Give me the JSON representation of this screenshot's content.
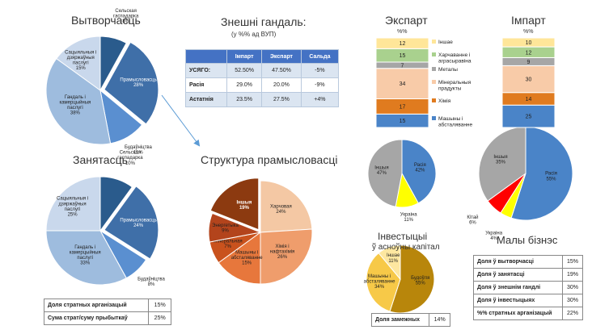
{
  "titles": {
    "production": "Вытворчасць",
    "employment": "Занятасць",
    "trade": "Знешні гандаль:",
    "trade_sub": "(у %% ад ВУП)",
    "industry": "Структура прамысловасці",
    "export": "Экспарт",
    "import": "Імпарт",
    "invest": "Інвестыцыі",
    "invest_sub": "ў асноўны капітал",
    "small": "Малы бізнэс"
  },
  "trade_table": {
    "headers": [
      "",
      "Імпарт",
      "Экспарт",
      "Сальда"
    ],
    "rows": [
      [
        "УСЯГО:",
        "52.50%",
        "47.50%",
        "-5%"
      ],
      [
        "Расія",
        "29.0%",
        "20.0%",
        "-9%"
      ],
      [
        "Астатнія",
        "23.5%",
        "27.5%",
        "+4%"
      ]
    ]
  },
  "losses_table": [
    [
      "Доля стратных арганізацый",
      "15%"
    ],
    [
      "Сума страт/суму прыбыткаў",
      "25%"
    ]
  ],
  "foreign_table": [
    [
      "Доля замежных",
      "14%"
    ]
  ],
  "small_table": [
    [
      "Доля ў вытворчасці",
      "15%"
    ],
    [
      "Доля ў занятасці",
      "19%"
    ],
    [
      "Доля ў знешнім гандлі",
      "30%"
    ],
    [
      "Доля ў інвестыцыях",
      "30%"
    ],
    [
      "%% стратных арганізацый",
      "22%"
    ]
  ],
  "colors": {
    "blue_dark": "#2e5d8e",
    "blue_mid": "#4a7fc0",
    "blue_light": "#9dbce0",
    "blue_pale": "#c6d7ec",
    "table_header": "#4472c4",
    "arrow": "#5b9bd5"
  },
  "chart_data": [
    {
      "id": "production",
      "type": "pie",
      "slices": [
        {
          "label": "Сельская гаспадарка",
          "value": 8,
          "text": "8%"
        },
        {
          "label": "Прамысловасць",
          "value": 28,
          "text": "28%"
        },
        {
          "label": "Будаўніцтва",
          "value": 11,
          "text": "11%"
        },
        {
          "label": "Гандаль і камерцыйныя паслугі",
          "value": 38,
          "text": "38%"
        },
        {
          "label": "Сацыяльныя і дзяржаўныя паслугі",
          "value": 15,
          "text": "15%"
        }
      ]
    },
    {
      "id": "employment",
      "type": "pie",
      "slices": [
        {
          "label": "Сельская гаспадарка",
          "value": 10,
          "text": "10%"
        },
        {
          "label": "Прамысловасць",
          "value": 24,
          "text": "24%"
        },
        {
          "label": "Будаўніцтва",
          "value": 8,
          "text": "8%"
        },
        {
          "label": "Гандаль і камерцыйныя паслугі",
          "value": 33,
          "text": "33%"
        },
        {
          "label": "Сацыяльныя і дзяржаўныя паслугі",
          "value": 25,
          "text": "25%"
        }
      ]
    },
    {
      "id": "industry",
      "type": "pie",
      "slices": [
        {
          "label": "Харчовая",
          "value": 24,
          "text": "24%"
        },
        {
          "label": "Хімія і нафтахімія",
          "value": 26,
          "text": "26%"
        },
        {
          "label": "Машыны і абсталяванне",
          "value": 15,
          "text": "15%"
        },
        {
          "label": "Мінеральная",
          "value": 7,
          "text": "7%"
        },
        {
          "label": "Энергетыка",
          "value": 9,
          "text": "9%"
        },
        {
          "label": "Іншыя",
          "value": 19,
          "text": "19%"
        }
      ]
    },
    {
      "id": "trade_structure",
      "type": "bar",
      "stacked": true,
      "unit": "%%",
      "categories": [
        "Экспарт",
        "Імпарт"
      ],
      "series": [
        {
          "name": "Машыны і абсталяванне",
          "values": [
            15,
            25
          ]
        },
        {
          "name": "Хімія",
          "values": [
            17,
            14
          ]
        },
        {
          "name": "Мінеральныя прадукты",
          "values": [
            34,
            30
          ]
        },
        {
          "name": "Металы",
          "values": [
            7,
            9
          ]
        },
        {
          "name": "Харчаванне і аграсыравіна",
          "values": [
            15,
            12
          ]
        },
        {
          "name": "Іншае",
          "values": [
            12,
            10
          ]
        }
      ]
    },
    {
      "id": "export_geo",
      "type": "pie",
      "slices": [
        {
          "label": "Расія",
          "value": 42,
          "text": "42%"
        },
        {
          "label": "Украіна",
          "value": 11,
          "text": "11%"
        },
        {
          "label": "Іншыя",
          "value": 47,
          "text": "47%"
        }
      ]
    },
    {
      "id": "import_geo",
      "type": "pie",
      "slices": [
        {
          "label": "Расія",
          "value": 55,
          "text": "55%"
        },
        {
          "label": "Украіна",
          "value": 4,
          "text": "4%"
        },
        {
          "label": "Кітай",
          "value": 6,
          "text": "6%"
        },
        {
          "label": "Іншыя",
          "value": 35,
          "text": "35%"
        }
      ]
    },
    {
      "id": "invest",
      "type": "pie",
      "slices": [
        {
          "label": "Будоўля",
          "value": 55,
          "text": "55%"
        },
        {
          "label": "Машыны і абсталяванне",
          "value": 34,
          "text": "34%"
        },
        {
          "label": "Іншае",
          "value": 11,
          "text": "11%"
        }
      ]
    }
  ]
}
